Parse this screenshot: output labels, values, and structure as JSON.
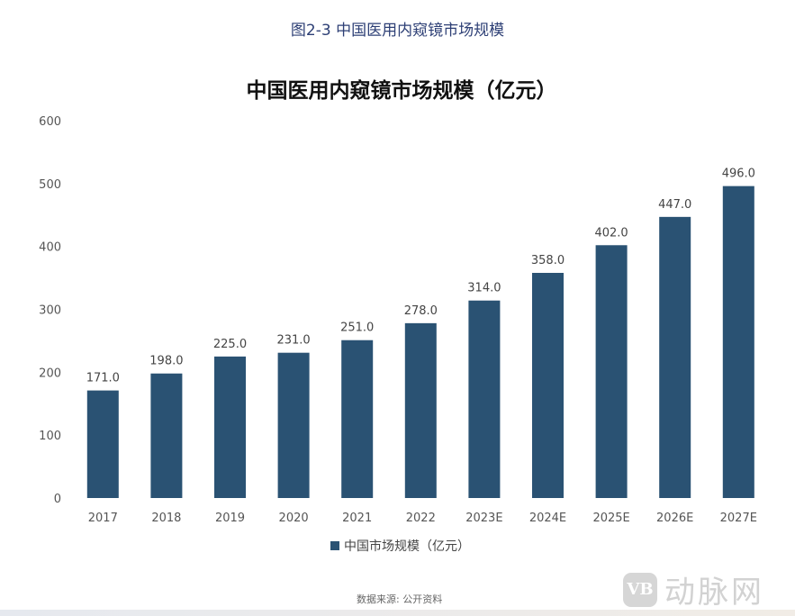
{
  "figure_caption": "图2-3 中国医用内窥镜市场规模",
  "source": "数据来源: 公开资料",
  "watermark": {
    "logo": "VB",
    "text": "动脉网"
  },
  "chart_data": {
    "type": "bar",
    "title": "中国医用内窥镜市场规模（亿元）",
    "categories": [
      "2017",
      "2018",
      "2019",
      "2020",
      "2021",
      "2022",
      "2023E",
      "2024E",
      "2025E",
      "2026E",
      "2027E"
    ],
    "series": [
      {
        "name": "中国市场规模（亿元）",
        "values": [
          171.0,
          198.0,
          225.0,
          231.0,
          251.0,
          278.0,
          314.0,
          358.0,
          402.0,
          447.0,
          496.0
        ],
        "color": "#2a5273"
      }
    ],
    "data_labels": [
      "171.0",
      "198.0",
      "225.0",
      "231.0",
      "251.0",
      "278.0",
      "314.0",
      "358.0",
      "402.0",
      "447.0",
      "496.0"
    ],
    "yticks": [
      "0",
      "100",
      "200",
      "300",
      "400",
      "500",
      "600"
    ],
    "ylim": [
      0,
      600
    ],
    "xlabel": "",
    "ylabel": "",
    "grid": false,
    "legend": "bottom"
  }
}
